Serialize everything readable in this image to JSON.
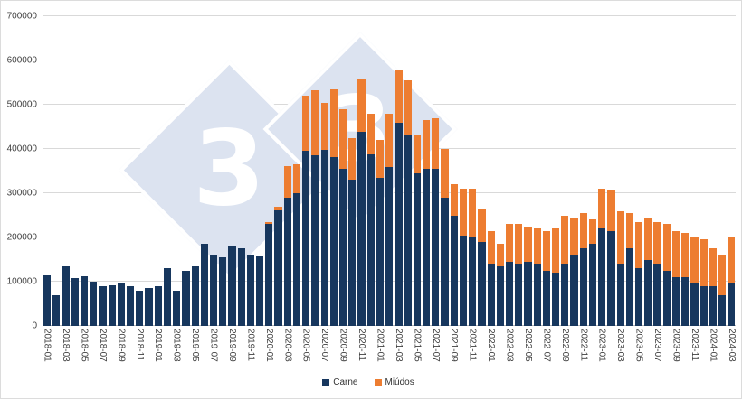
{
  "chart_data": {
    "type": "bar",
    "stacked": true,
    "title": "",
    "xlabel": "",
    "ylabel": "",
    "ylim": [
      0,
      700000
    ],
    "y_ticks": [
      0,
      100000,
      200000,
      300000,
      400000,
      500000,
      600000,
      700000
    ],
    "x_label_every": 2,
    "grid": true,
    "legend_position": "bottom-center",
    "categories": [
      "2018-01",
      "2018-02",
      "2018-03",
      "2018-04",
      "2018-05",
      "2018-06",
      "2018-07",
      "2018-08",
      "2018-09",
      "2018-10",
      "2018-11",
      "2018-12",
      "2019-01",
      "2019-02",
      "2019-03",
      "2019-04",
      "2019-05",
      "2019-06",
      "2019-07",
      "2019-08",
      "2019-09",
      "2019-10",
      "2019-11",
      "2019-12",
      "2020-01",
      "2020-02",
      "2020-03",
      "2020-04",
      "2020-05",
      "2020-06",
      "2020-07",
      "2020-08",
      "2020-09",
      "2020-10",
      "2020-11",
      "2020-12",
      "2021-01",
      "2021-02",
      "2021-03",
      "2021-04",
      "2021-05",
      "2021-06",
      "2021-07",
      "2021-08",
      "2021-09",
      "2021-10",
      "2021-11",
      "2021-12",
      "2022-01",
      "2022-02",
      "2022-03",
      "2022-04",
      "2022-05",
      "2022-06",
      "2022-07",
      "2022-08",
      "2022-09",
      "2022-10",
      "2022-11",
      "2022-12",
      "2023-01",
      "2023-02",
      "2023-03",
      "2023-04",
      "2023-05",
      "2023-06",
      "2023-07",
      "2023-08",
      "2023-09",
      "2023-10",
      "2023-11",
      "2023-12",
      "2024-01",
      "2024-02",
      "2024-03"
    ],
    "series": [
      {
        "name": "Carne",
        "slug": "carne",
        "color": "#17375e",
        "values": [
          115000,
          70000,
          135000,
          108000,
          112000,
          100000,
          90000,
          92000,
          95000,
          90000,
          80000,
          85000,
          90000,
          130000,
          80000,
          125000,
          135000,
          185000,
          160000,
          155000,
          180000,
          175000,
          160000,
          158000,
          230000,
          262000,
          290000,
          300000,
          395000,
          385000,
          398000,
          382000,
          355000,
          330000,
          438000,
          388000,
          335000,
          360000,
          460000,
          430000,
          345000,
          355000,
          355000,
          290000,
          250000,
          205000,
          200000,
          190000,
          140000,
          135000,
          145000,
          140000,
          145000,
          140000,
          125000,
          120000,
          140000,
          160000,
          175000,
          185000,
          220000,
          215000,
          140000,
          175000,
          130000,
          150000,
          140000,
          125000,
          110000,
          110000,
          95000,
          90000,
          90000,
          70000,
          95000
        ]
      },
      {
        "name": "Miúdos",
        "slug": "miudos",
        "color": "#ed7d31",
        "values": [
          0,
          0,
          0,
          0,
          0,
          0,
          0,
          0,
          0,
          0,
          0,
          0,
          0,
          0,
          0,
          0,
          0,
          0,
          0,
          0,
          0,
          0,
          0,
          0,
          5000,
          8000,
          72000,
          65000,
          125000,
          148000,
          107000,
          152000,
          135000,
          95000,
          122000,
          92000,
          85000,
          120000,
          120000,
          125000,
          85000,
          110000,
          115000,
          110000,
          70000,
          105000,
          110000,
          75000,
          75000,
          50000,
          85000,
          90000,
          80000,
          80000,
          90000,
          100000,
          110000,
          85000,
          80000,
          55000,
          90000,
          93000,
          120000,
          80000,
          105000,
          95000,
          95000,
          105000,
          105000,
          100000,
          105000,
          105000,
          85000,
          90000,
          105000
        ]
      }
    ]
  },
  "watermark": {
    "digits": [
      "3",
      "3"
    ],
    "color": "#dce3f0",
    "text_color": "#ffffff"
  },
  "colors": {
    "carne": "#17375e",
    "miudos": "#ed7d31",
    "gridline": "#d9d9d9",
    "axis_text": "#404040",
    "background": "#ffffff"
  }
}
